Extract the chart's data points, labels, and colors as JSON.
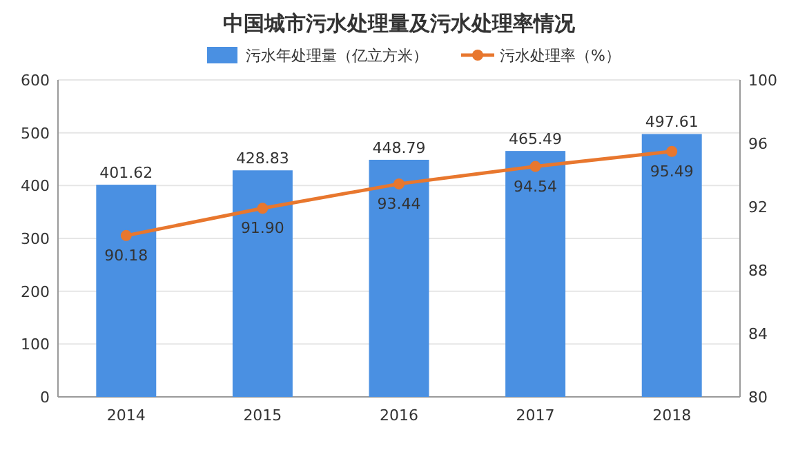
{
  "chart_data": {
    "type": "bar",
    "title": "中国城市污水处理量及污水处理率情况",
    "categories": [
      "2014",
      "2015",
      "2016",
      "2017",
      "2018"
    ],
    "series": [
      {
        "name": "污水年处理量（亿立方米）",
        "color": "#4a90e2",
        "values": [
          401.62,
          428.83,
          448.79,
          465.49,
          497.61
        ],
        "value_labels": [
          "401.62",
          "428.83",
          "448.79",
          "465.49",
          "497.61"
        ]
      },
      {
        "name": "污水处理率（%）",
        "type": "line",
        "axis": "y2",
        "color": "#e8772e",
        "values": [
          90.18,
          91.9,
          93.44,
          94.54,
          95.49
        ],
        "value_labels": [
          "90.18",
          "91.90",
          "93.44",
          "94.54",
          "95.49"
        ]
      }
    ],
    "ylim": [
      0,
      600
    ],
    "yticks": [
      0,
      100,
      200,
      300,
      400,
      500,
      600
    ],
    "y2lim": [
      80,
      100
    ],
    "y2ticks": [
      80,
      84,
      88,
      92,
      96,
      100
    ],
    "grid": "y",
    "legend": "top",
    "marker": "circle",
    "line_style": "solid"
  }
}
